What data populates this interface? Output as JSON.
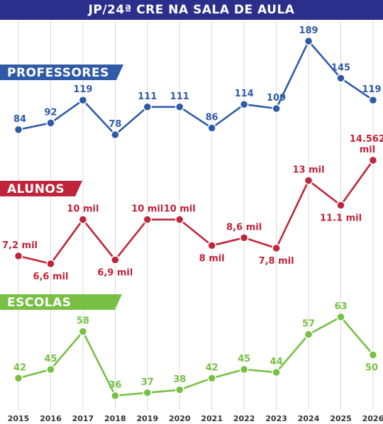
{
  "header": {
    "title": "JP/24ª CRE NA SALA DE AULA"
  },
  "colors": {
    "header_bg": "#2b2f8c",
    "professores": "#2f5aa8",
    "alunos": "#c0243a",
    "escolas": "#77c043",
    "grid": "#d8d8d8"
  },
  "chart_data": {
    "type": "line",
    "categories": [
      "2015",
      "2016",
      "2017",
      "2018",
      "2019",
      "2020",
      "2021",
      "2022",
      "2023",
      "2024",
      "2025",
      "2026"
    ],
    "title": "JP/24ª CRE NA SALA DE AULA",
    "grid": "vertical",
    "series": [
      {
        "name": "PROFESSORES",
        "values": [
          84,
          92,
          119,
          78,
          111,
          111,
          86,
          114,
          109,
          189,
          145,
          119
        ],
        "labels": [
          "84",
          "92",
          "119",
          "78",
          "111",
          "111",
          "86",
          "114",
          "109",
          "189",
          "145",
          "119"
        ],
        "color": "#2f5aa8"
      },
      {
        "name": "ALUNOS",
        "values": [
          7.2,
          6.6,
          10,
          6.9,
          10,
          10,
          8,
          8.6,
          7.8,
          13,
          11.1,
          14.562
        ],
        "labels": [
          "7,2 mil",
          "6,6 mil",
          "10 mil",
          "6,9 mil",
          "10 mil",
          "10 mil",
          "8 mil",
          "8,6 mil",
          "7,8 mil",
          "13 mil",
          "11.1 mil",
          "14.562 mil"
        ],
        "color": "#c0243a"
      },
      {
        "name": "ESCOLAS",
        "values": [
          42,
          45,
          58,
          36,
          37,
          38,
          42,
          45,
          44,
          57,
          63,
          50
        ],
        "labels": [
          "42",
          "45",
          "58",
          "36",
          "37",
          "38",
          "42",
          "45",
          "44",
          "57",
          "63",
          "50"
        ],
        "color": "#77c043"
      }
    ]
  }
}
